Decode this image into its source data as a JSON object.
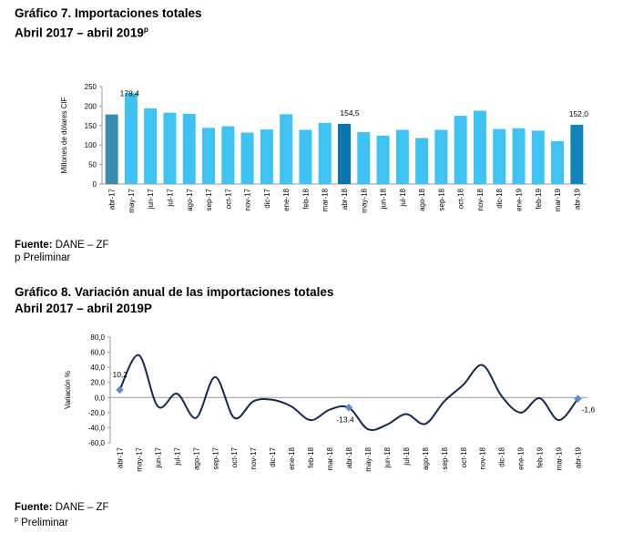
{
  "chart7": {
    "title_line1": "Gráfico 7. Importaciones totales",
    "title_line2": "Abril 2017 – abril 2019",
    "title_sup": "p",
    "source_label": "Fuente:",
    "source_text": " DANE – ZF",
    "note": "p Preliminar"
  },
  "chart8": {
    "title_line1": "Gráfico 8. Variación anual de las importaciones totales",
    "title_line2": "Abril 2017 – abril 2019P",
    "source_label": "Fuente:",
    "source_text": " DANE – ZF",
    "note_sup": "p",
    "note_text": " Preliminar"
  },
  "colors": {
    "bar": "#3ec3f2",
    "bar_highlight_1": "#3a8bab",
    "bar_highlight_2": "#0a76b3",
    "bar_highlight_3": "#1183bd",
    "line": "#14294f",
    "marker": "#5b8cc8"
  },
  "chart_data": [
    {
      "type": "bar",
      "ylabel": "Millones de dólares CIF",
      "ylim": [
        0,
        250
      ],
      "yticks": [
        "0",
        "50",
        "100",
        "150",
        "200",
        "250"
      ],
      "categories": [
        "abr-17",
        "may-17",
        "jun-17",
        "jul-17",
        "ago-17",
        "sep-17",
        "oct-17",
        "nov-17",
        "dic-17",
        "ene-18",
        "feb-18",
        "mar-18",
        "abr-18",
        "may-18",
        "jun-18",
        "jul-18",
        "ago-18",
        "sep-18",
        "oct-18",
        "nov-18",
        "dic-18",
        "ene-19",
        "feb-19",
        "mar-19",
        "abr-19"
      ],
      "values": [
        178.4,
        233,
        194,
        183,
        180,
        144,
        148,
        132,
        140,
        179,
        139,
        157,
        154.5,
        133,
        124,
        139,
        118,
        139,
        175,
        188,
        141,
        143,
        137,
        110,
        152.0
      ],
      "data_labels": [
        {
          "index": 0,
          "text": "178,4"
        },
        {
          "index": 12,
          "text": "154,5"
        },
        {
          "index": 24,
          "text": "152,0"
        }
      ],
      "highlight": {
        "0": "bar_highlight_1",
        "12": "bar_highlight_2",
        "24": "bar_highlight_3"
      }
    },
    {
      "type": "line",
      "ylabel": "Variación %",
      "ylim": [
        -60,
        80
      ],
      "yticks": [
        "80,0",
        "60,0",
        "40,0",
        "20,0",
        "0,0",
        "-20,0",
        "-40,0",
        "-60,0"
      ],
      "categories": [
        "abr-17",
        "may-17",
        "jun-17",
        "jul-17",
        "ago-17",
        "sep-17",
        "oct-17",
        "nov-17",
        "dic-17",
        "ene-18",
        "feb-18",
        "mar-18",
        "abr-18",
        "may-18",
        "jun-18",
        "jul-18",
        "ago-18",
        "sep-18",
        "oct-18",
        "nov-18",
        "dic-18",
        "ene-19",
        "feb-19",
        "mar-19",
        "abr-19"
      ],
      "values": [
        10.2,
        56,
        -12,
        5,
        -27,
        27,
        -27,
        -5,
        -3,
        -12,
        -30,
        -16,
        -13.4,
        -42,
        -36,
        -22,
        -35,
        -5,
        17,
        43,
        2,
        -20,
        -1,
        -30,
        -1.6
      ],
      "data_labels": [
        {
          "index": 0,
          "text": "10,2"
        },
        {
          "index": 12,
          "text": "-13,4"
        },
        {
          "index": 24,
          "text": "-1,6"
        }
      ]
    }
  ]
}
